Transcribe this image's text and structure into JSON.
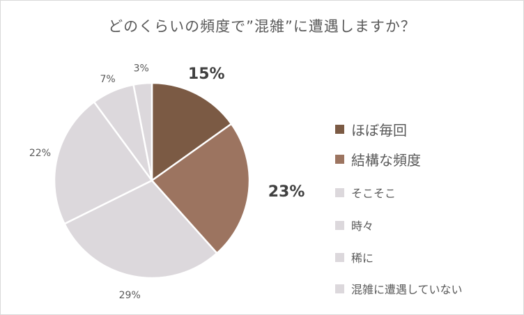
{
  "chart_data": {
    "type": "pie",
    "title": "どのくらいの頻度で”混雑”に遭遇しますか？",
    "categories": [
      "ほぼ毎回",
      "結構な頻度",
      "そこそこ",
      "時々",
      "稀に",
      "混雑に遭遇していない"
    ],
    "values": [
      15,
      23,
      29,
      22,
      7,
      3
    ],
    "value_labels": [
      "15%",
      "23%",
      "29%",
      "22%",
      "7%",
      "3%"
    ],
    "colors": [
      "#7b5a44",
      "#9c7460",
      "#dcd8dc",
      "#dcd8dc",
      "#dcd8dc",
      "#dcd8dc"
    ],
    "legend_position": "right",
    "start_angle": "top, clockwise"
  }
}
